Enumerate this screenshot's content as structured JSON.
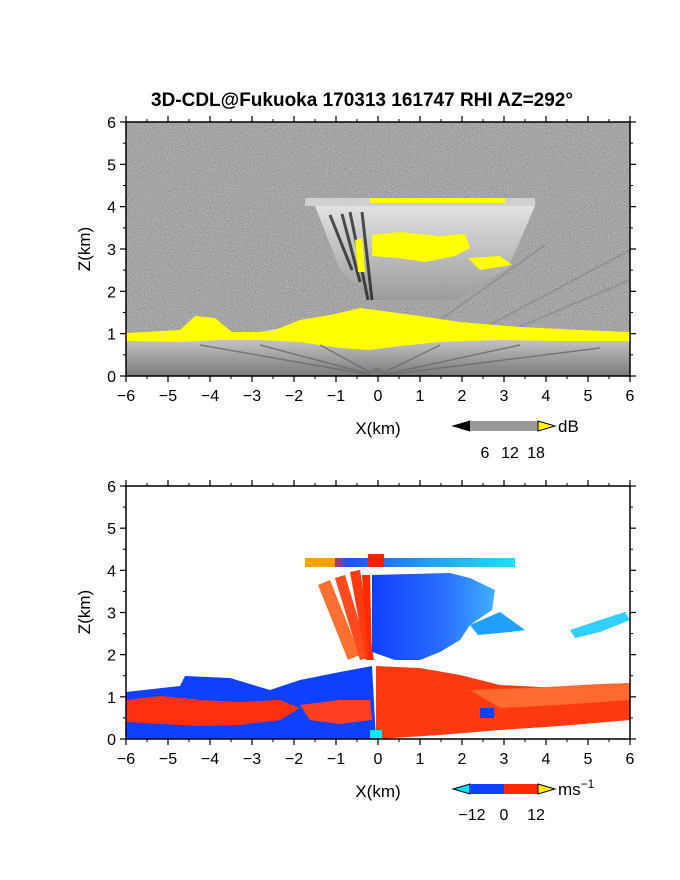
{
  "title": "3D-CDL@Fukuoka 170313 161747 RHI AZ=292°",
  "chart_data": [
    {
      "type": "heatmap",
      "quantity": "backscatter intensity",
      "xlabel": "X(km)",
      "ylabel": "Z(km)",
      "xlim": [
        -6,
        6
      ],
      "ylim": [
        0,
        6
      ],
      "xticks": [
        "-6",
        "-5",
        "-4",
        "-3",
        "-2",
        "-1",
        "0",
        "1",
        "2",
        "3",
        "4",
        "5",
        "6"
      ],
      "yticks": [
        "0",
        "1",
        "2",
        "3",
        "4",
        "5",
        "6"
      ],
      "colorbar": {
        "unit": "dB",
        "ticks": [
          "6",
          "12",
          "18"
        ],
        "range": [
          0,
          20
        ],
        "colors": [
          "#000000",
          "#ffffff",
          "#ffff00"
        ]
      },
      "features": [
        {
          "name": "boundary layer",
          "z_top": 1.0,
          "x_range": [
            -6,
            6
          ],
          "saturated": true
        },
        {
          "name": "cloud layer",
          "z_range": [
            2.5,
            3.2
          ],
          "x_range": [
            -0.4,
            3.2
          ]
        },
        {
          "name": "cloud base line",
          "z": 4.2,
          "x_range": [
            -1.6,
            3.8
          ]
        },
        {
          "name": "radar beam fan",
          "z_range": [
            1.8,
            4.2
          ],
          "x_range": [
            -1.4,
            4.0
          ]
        }
      ]
    },
    {
      "type": "heatmap",
      "quantity": "radial velocity",
      "xlabel": "X(km)",
      "ylabel": "Z(km)",
      "xlim": [
        -6,
        6
      ],
      "ylim": [
        0,
        6
      ],
      "xticks": [
        "-6",
        "-5",
        "-4",
        "-3",
        "-2",
        "-1",
        "0",
        "1",
        "2",
        "3",
        "4",
        "5",
        "6"
      ],
      "yticks": [
        "0",
        "1",
        "2",
        "3",
        "4",
        "5",
        "6"
      ],
      "colorbar": {
        "unit": "ms",
        "unit_exponent": "−1",
        "ticks": [
          "−12",
          "0",
          "12"
        ],
        "range": [
          -15,
          15
        ],
        "colors": [
          "#00e0ff",
          "#0030ff",
          "#ff2000",
          "#ffee00"
        ]
      },
      "features": [
        {
          "name": "boundary layer west",
          "z_range": [
            0,
            1.1
          ],
          "x_range": [
            -6,
            0
          ],
          "velocity": "mixed"
        },
        {
          "name": "boundary layer east",
          "z_range": [
            0,
            1.6
          ],
          "x_range": [
            0,
            6
          ],
          "velocity": "positive"
        },
        {
          "name": "cloud echo negative",
          "z_range": [
            1.8,
            3.9
          ],
          "x_range": [
            -0.2,
            3.0
          ],
          "velocity": -9
        },
        {
          "name": "cloud echo positive",
          "z_range": [
            2.0,
            3.6
          ],
          "x_range": [
            -1.4,
            -0.1
          ],
          "velocity": 9
        },
        {
          "name": "upper line",
          "z": 4.2,
          "x_range": [
            -1.6,
            3.7
          ]
        }
      ]
    }
  ]
}
